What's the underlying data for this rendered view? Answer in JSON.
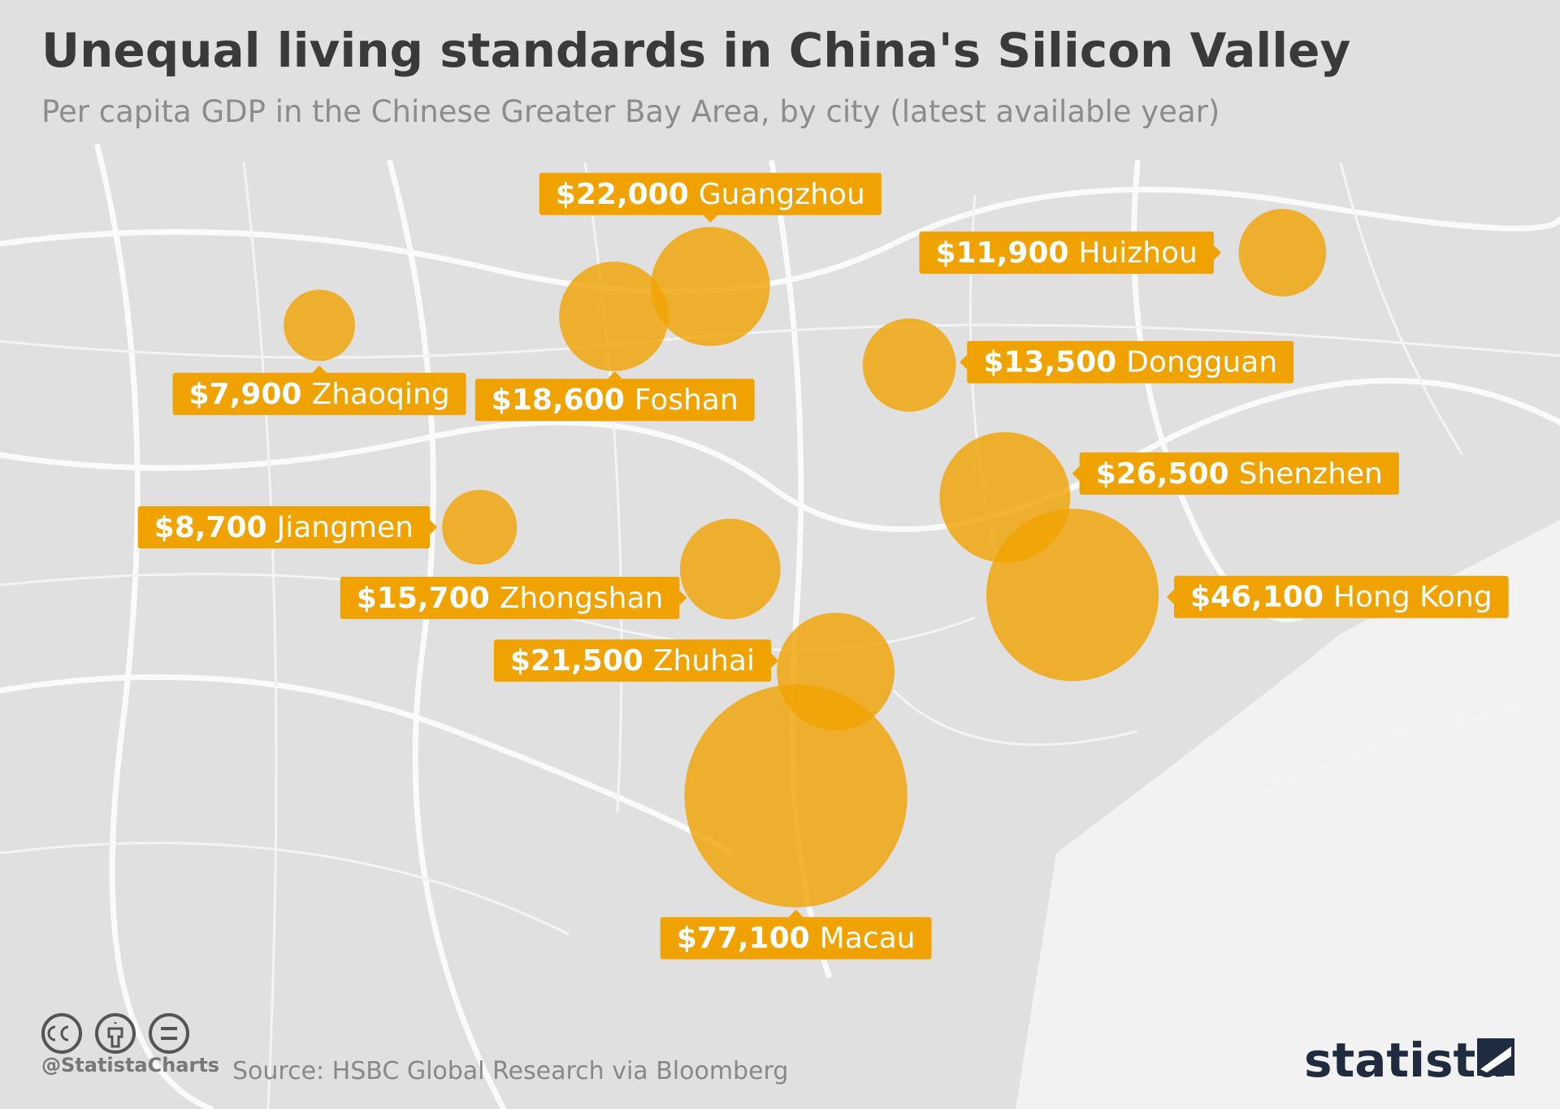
{
  "chart_data": {
    "type": "bubble",
    "title": "Unequal living standards in China's Silicon Valley",
    "subtitle": "Per capita GDP in the Chinese Greater Bay Area, by city (latest available year)",
    "categories": [
      "Guangzhou",
      "Huizhou",
      "Zhaoqing",
      "Foshan",
      "Dongguan",
      "Shenzhen",
      "Jiangmen",
      "Zhongshan",
      "Hong Kong",
      "Zhuhai",
      "Macau"
    ],
    "values": [
      22000,
      11900,
      7900,
      18600,
      13500,
      26500,
      8700,
      15700,
      46100,
      21500,
      77100
    ],
    "value_labels": [
      "$22,000",
      "$11,900",
      "$7,900",
      "$18,600",
      "$13,500",
      "$26,500",
      "$8,700",
      "$15,700",
      "$46,100",
      "$21,500",
      "$77,100"
    ],
    "color": "#f0a300"
  },
  "footer": {
    "handle": "@StatistaCharts",
    "source": "Source: HSBC Global Research via Bloomberg",
    "logo": "statista"
  }
}
